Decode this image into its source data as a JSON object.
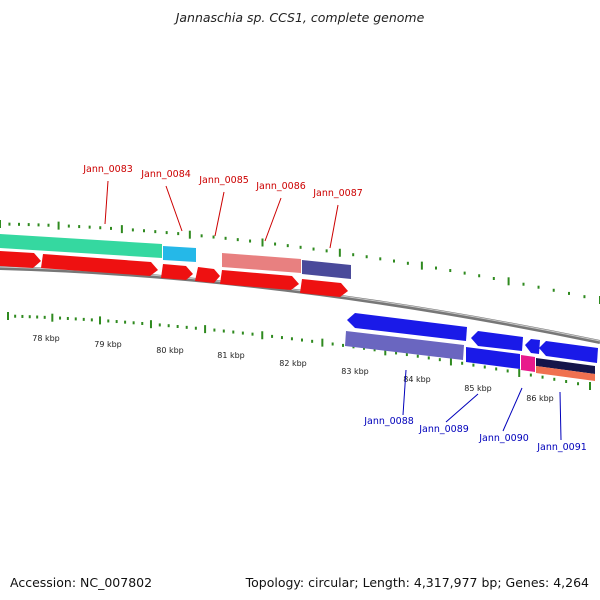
{
  "header": {
    "title": "Jannaschia sp. CCS1, complete genome"
  },
  "footer": {
    "accession": "Accession: NC_007802",
    "summary": "Topology: circular; Length: 4,317,977 bp; Genes: 4,264"
  },
  "colors": {
    "forward_label": "#cc0000",
    "reverse_label": "#0000bb",
    "tick": "#2f8a1f",
    "backbone": "#888888"
  },
  "scale_labels": [
    "78 kbp",
    "79 kbp",
    "80 kbp",
    "81 kbp",
    "82 kbp",
    "83 kbp",
    "84 kbp",
    "85 kbp",
    "86 kbp"
  ],
  "forward_genes": [
    "Jann_0083",
    "Jann_0084",
    "Jann_0085",
    "Jann_0086",
    "Jann_0087"
  ],
  "reverse_genes": [
    "Jann_0088",
    "Jann_0089",
    "Jann_0090",
    "Jann_0091"
  ]
}
